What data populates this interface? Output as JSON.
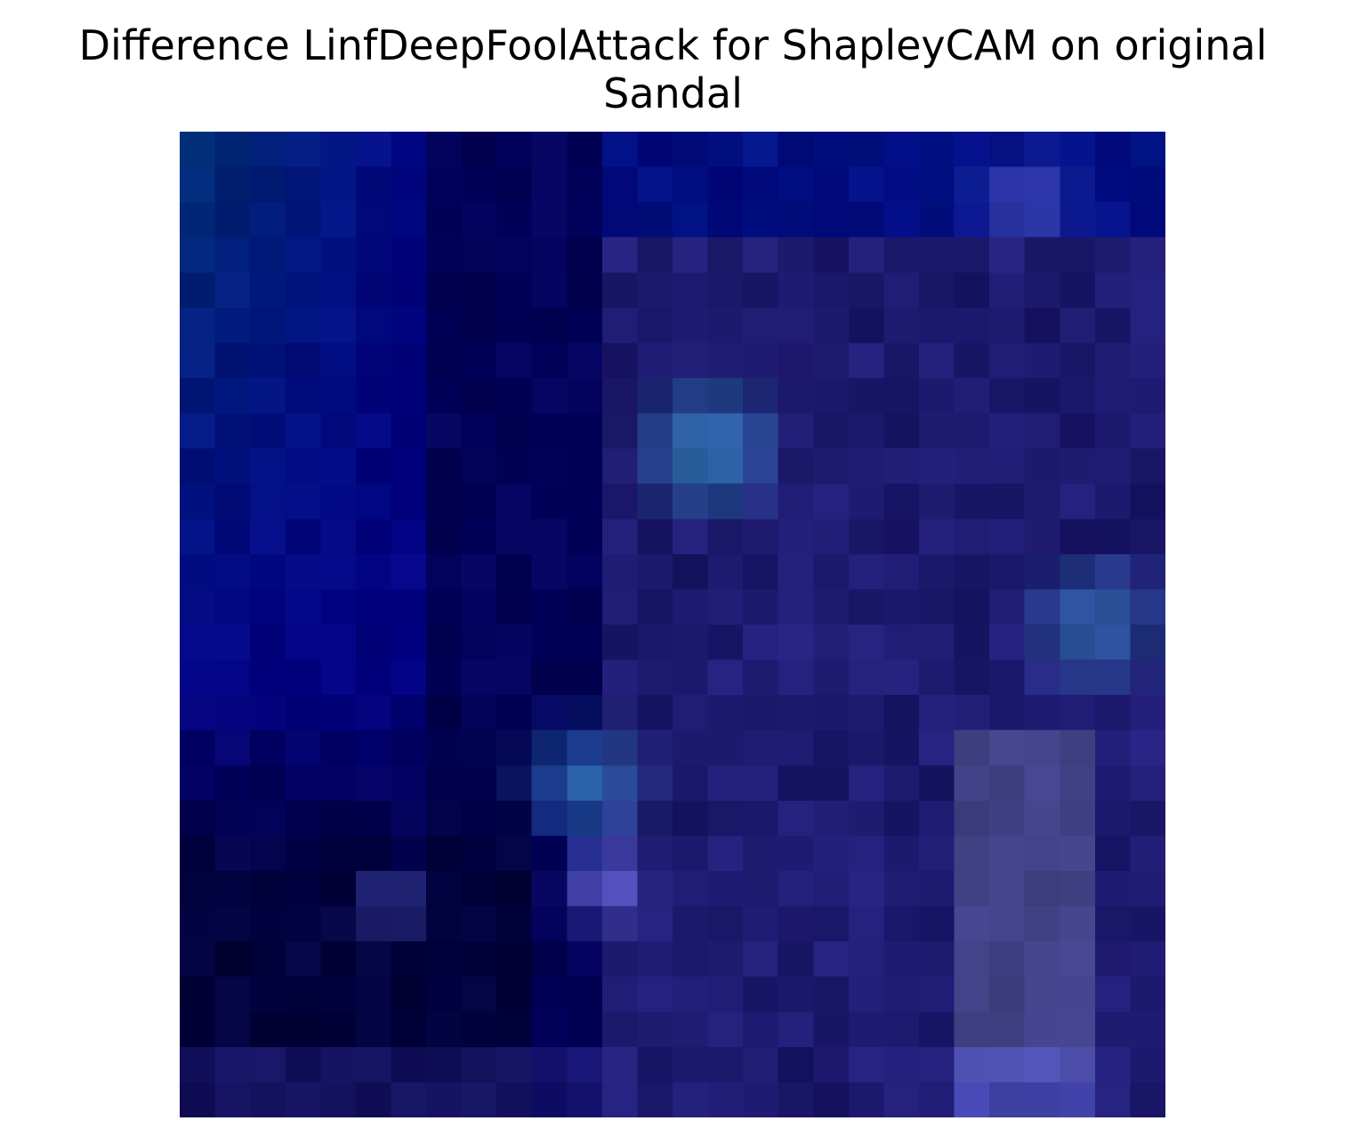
{
  "figure": {
    "title_line1": "Difference LinfDeepFoolAttack for ShapleyCAM on original",
    "title_line2": "Sandal"
  }
}
